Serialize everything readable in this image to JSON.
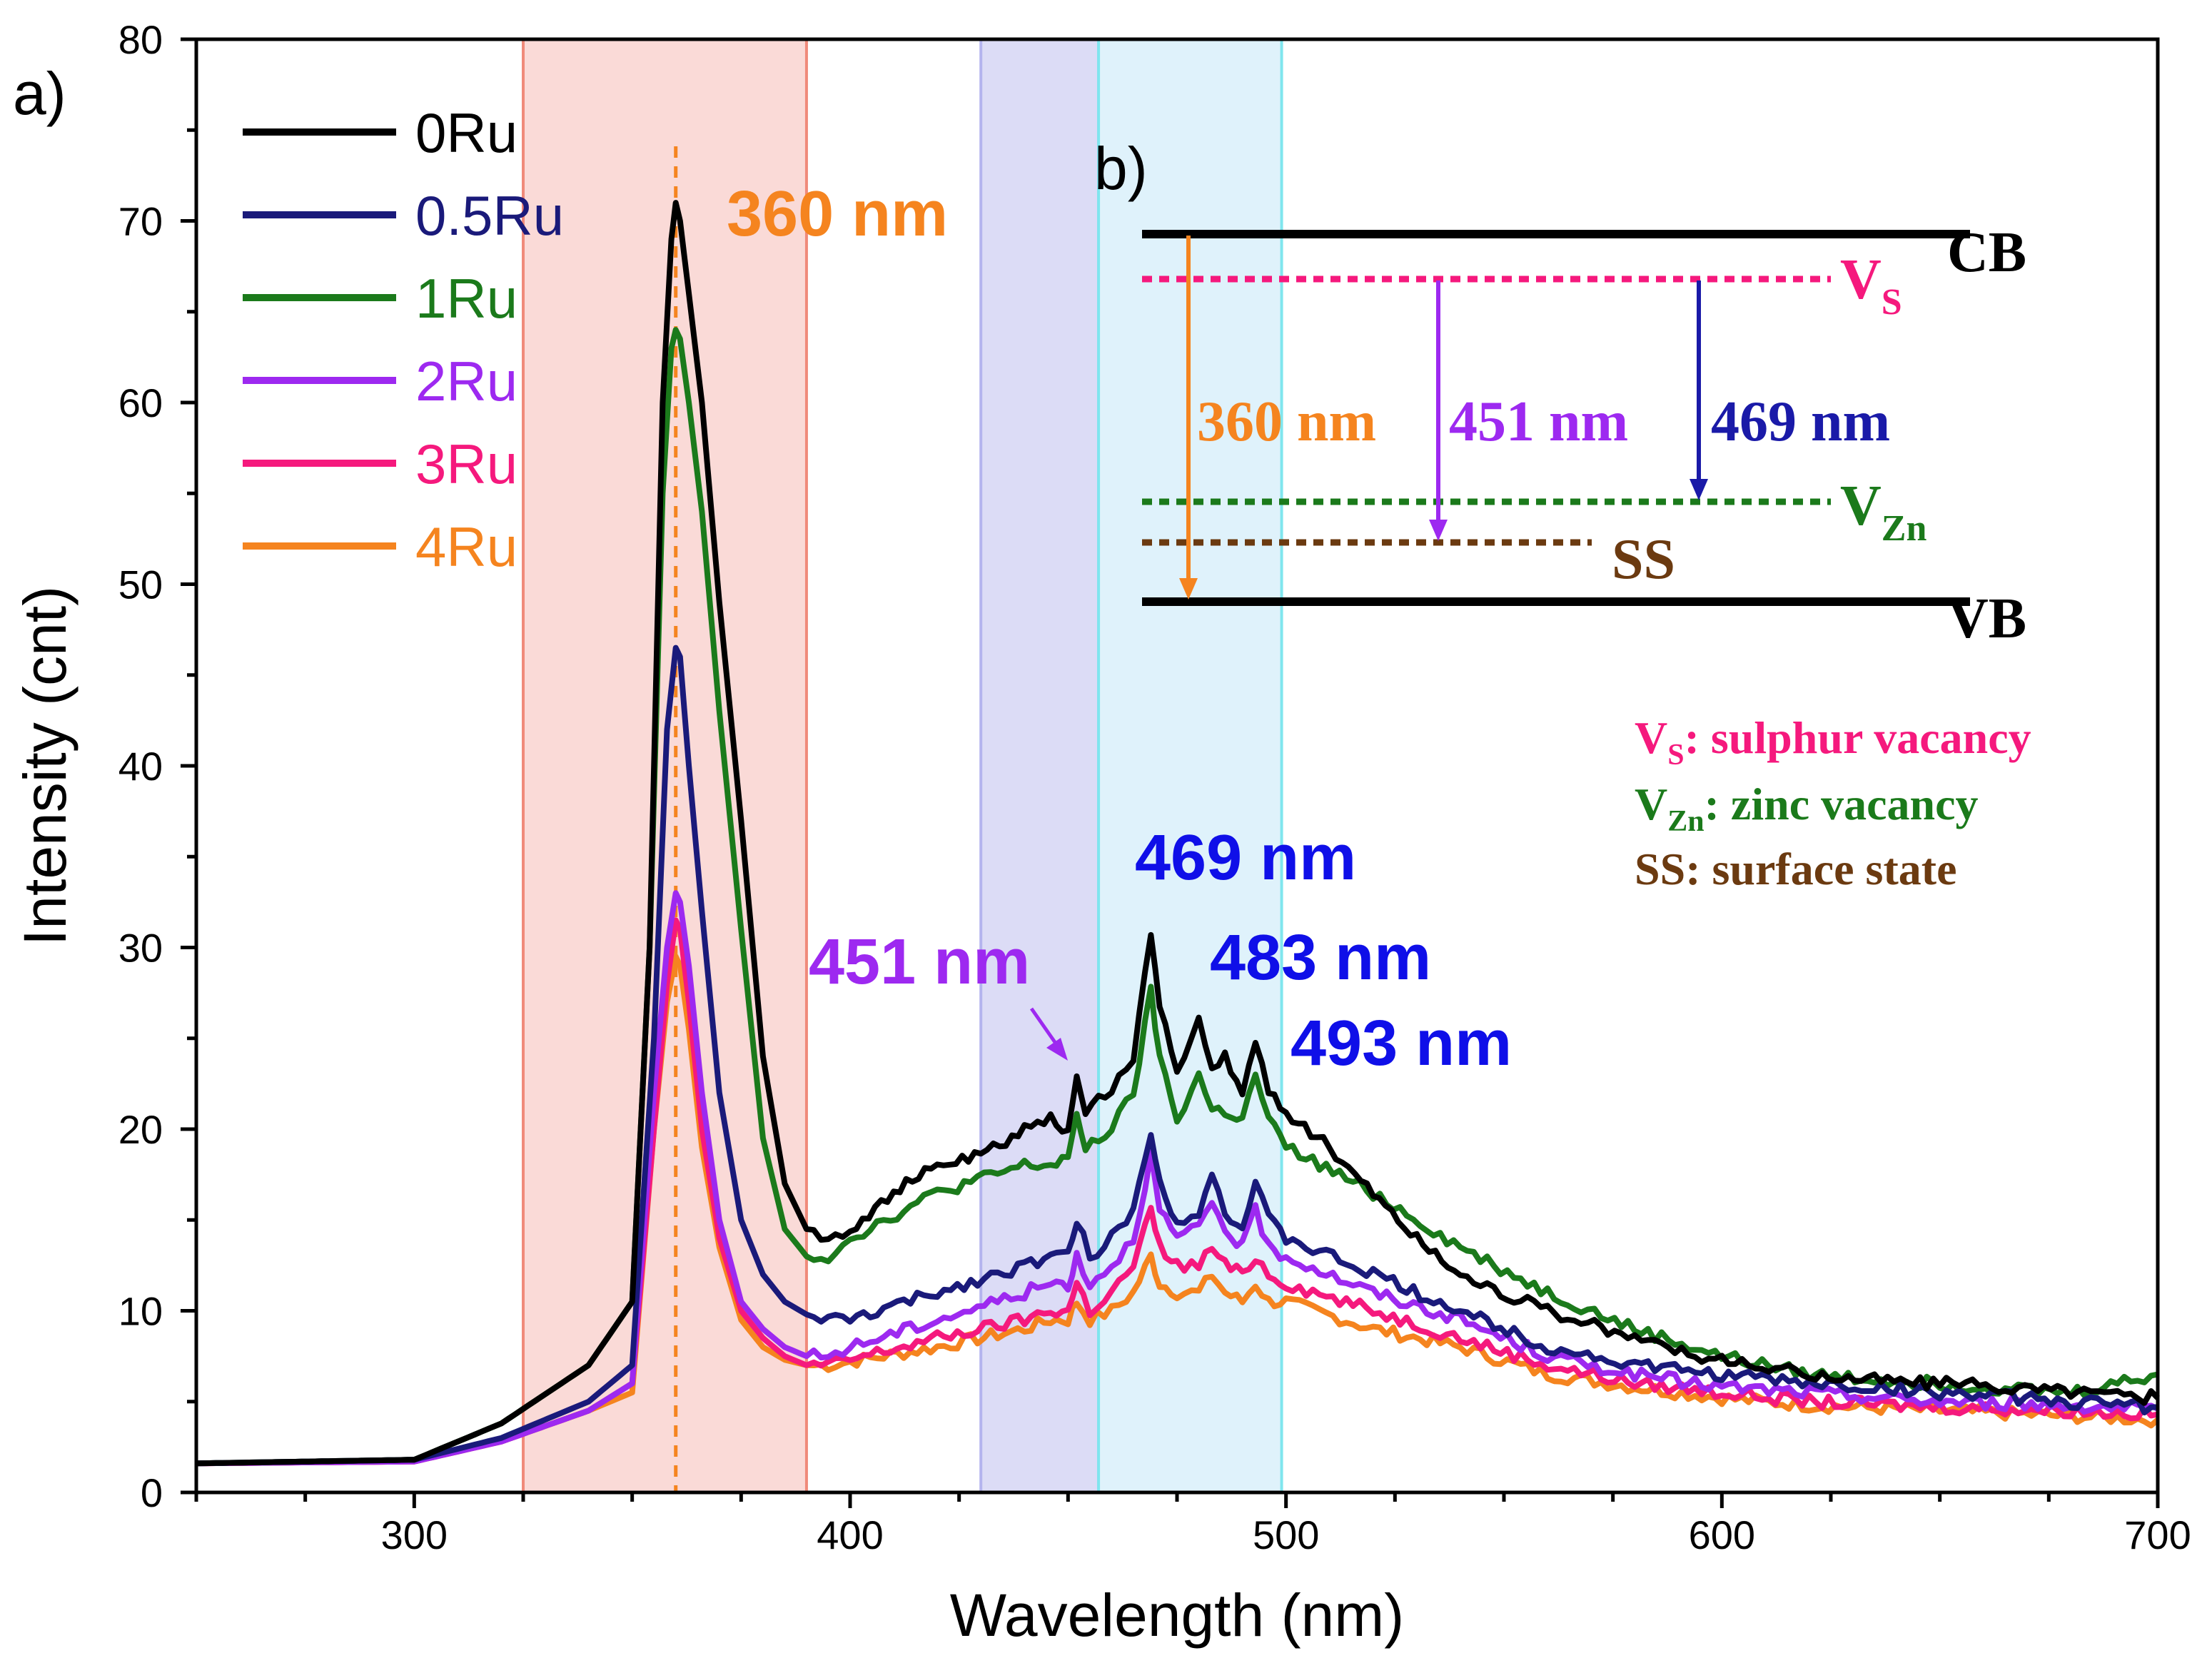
{
  "chart_data": {
    "type": "line",
    "panel_label": "a)",
    "xlabel": "Wavelength (nm)",
    "ylabel": "Intensity (cnt)",
    "xlim": [
      250,
      700
    ],
    "ylim": [
      0,
      80
    ],
    "x_ticks": [
      300,
      400,
      500,
      600,
      700
    ],
    "y_ticks": [
      0,
      10,
      20,
      30,
      40,
      50,
      60,
      70,
      80
    ],
    "grid": false,
    "legend_position": "top-left",
    "shaded_bands": [
      {
        "name": "uv-band",
        "range": [
          325,
          390
        ],
        "fill": "#fadad7",
        "edge": "#f08a7a"
      },
      {
        "name": "violet-band",
        "range": [
          430,
          457
        ],
        "fill": "#dcdcf6",
        "edge": "#b4b4ee"
      },
      {
        "name": "cyan-band",
        "range": [
          457,
          499
        ],
        "fill": "#dff2fb",
        "edge": "#7fe6ee"
      }
    ],
    "reference_line": {
      "x": 360,
      "color": "#f5841f"
    },
    "series": [
      {
        "name": "0Ru",
        "color": "#000000",
        "x": [
          250,
          300,
          320,
          340,
          350,
          354,
          357,
          359,
          360,
          361,
          363,
          366,
          370,
          375,
          380,
          385,
          390,
          395,
          400,
          410,
          420,
          430,
          440,
          446,
          450,
          452,
          454,
          460,
          465,
          469,
          471,
          475,
          480,
          483,
          486,
          490,
          493,
          496,
          500,
          510,
          520,
          530,
          540,
          560,
          580,
          600,
          620,
          650,
          680,
          700
        ],
        "y": [
          1.6,
          1.8,
          3.8,
          7,
          10.5,
          30,
          60,
          69,
          71,
          70,
          66,
          60,
          49,
          37,
          24,
          17,
          14.5,
          14,
          14.5,
          16.5,
          18,
          18.5,
          20,
          20.5,
          20,
          23,
          21,
          22,
          24,
          31,
          27,
          23,
          26,
          23,
          24,
          22,
          25,
          22,
          21,
          19,
          16.5,
          14,
          12,
          10,
          8.5,
          7.2,
          6.5,
          6,
          5.6,
          5.2
        ]
      },
      {
        "name": "0.5Ru",
        "color": "#1a1a7a",
        "x": [
          250,
          300,
          320,
          340,
          350,
          355,
          358,
          360,
          361,
          363,
          366,
          370,
          375,
          380,
          385,
          390,
          395,
          400,
          420,
          440,
          446,
          450,
          452,
          455,
          460,
          465,
          469,
          471,
          475,
          480,
          483,
          486,
          490,
          493,
          496,
          500,
          520,
          540,
          560,
          580,
          600,
          620,
          650,
          680,
          700
        ],
        "y": [
          1.6,
          1.8,
          3,
          5,
          7,
          25,
          42,
          46.5,
          46,
          40,
          32,
          22,
          15,
          12,
          10.5,
          9.8,
          9.5,
          9.5,
          11,
          12.5,
          13,
          13,
          15,
          13,
          14,
          15.5,
          20,
          17,
          15,
          15.5,
          17.5,
          15.5,
          14.5,
          17,
          15,
          14,
          12,
          10,
          8,
          7,
          6.5,
          6,
          5.5,
          5,
          4.7
        ]
      },
      {
        "name": "1Ru",
        "color": "#1b7a1b",
        "x": [
          250,
          300,
          320,
          340,
          350,
          354,
          357,
          359,
          360,
          361,
          363,
          366,
          370,
          375,
          380,
          385,
          390,
          395,
          400,
          420,
          440,
          446,
          450,
          452,
          454,
          460,
          465,
          469,
          471,
          475,
          480,
          483,
          486,
          490,
          493,
          496,
          500,
          520,
          540,
          560,
          580,
          600,
          620,
          650,
          680,
          700
        ],
        "y": [
          1.6,
          1.8,
          3.8,
          7,
          10.5,
          30,
          55,
          63,
          64,
          63.5,
          60,
          54,
          43,
          31,
          19.5,
          14.5,
          13,
          13,
          14,
          16.5,
          18,
          18,
          18.5,
          20.5,
          19,
          20,
          22,
          27.5,
          24,
          20.5,
          23,
          21,
          21,
          20.5,
          23,
          20.5,
          19,
          16.5,
          13.5,
          11,
          9,
          7.5,
          6.5,
          6,
          5.5,
          6.5
        ]
      },
      {
        "name": "2Ru",
        "color": "#9d29f0",
        "x": [
          250,
          300,
          320,
          340,
          350,
          355,
          358,
          360,
          361,
          363,
          366,
          370,
          375,
          380,
          385,
          390,
          395,
          400,
          420,
          440,
          446,
          450,
          452,
          455,
          460,
          465,
          469,
          471,
          475,
          480,
          483,
          486,
          490,
          493,
          496,
          500,
          520,
          540,
          560,
          580,
          600,
          620,
          650,
          680,
          700
        ],
        "y": [
          1.6,
          1.7,
          2.8,
          4.5,
          6,
          22,
          30,
          33,
          32.5,
          29,
          22,
          15,
          10.5,
          9,
          8,
          7.5,
          7.5,
          8,
          9.5,
          11,
          11.5,
          11.5,
          13,
          11.5,
          12.5,
          14,
          18.5,
          15.5,
          14,
          14.5,
          16,
          14.5,
          13.5,
          15.5,
          13.5,
          13,
          11,
          9.5,
          7.5,
          6.5,
          5.8,
          5.5,
          5,
          4.8,
          4.6
        ]
      },
      {
        "name": "3Ru",
        "color": "#f5197d",
        "x": [
          250,
          300,
          320,
          340,
          350,
          355,
          358,
          360,
          361,
          363,
          366,
          370,
          375,
          380,
          385,
          390,
          395,
          400,
          420,
          440,
          446,
          450,
          452,
          455,
          460,
          465,
          469,
          471,
          475,
          480,
          483,
          486,
          490,
          493,
          496,
          500,
          520,
          540,
          560,
          580,
          600,
          620,
          650,
          680,
          700
        ],
        "y": [
          1.6,
          1.7,
          2.8,
          4.5,
          6,
          20,
          28,
          31.5,
          31,
          27,
          20,
          14,
          10,
          8.5,
          7.5,
          7,
          7,
          7.3,
          8.5,
          9.5,
          10,
          10,
          11.5,
          10,
          11,
          12.5,
          15.5,
          13.5,
          12.5,
          12.5,
          13.5,
          12.5,
          12,
          13,
          12,
          11.5,
          10,
          8.5,
          7,
          6,
          5.5,
          5,
          4.7,
          4.5,
          4.3
        ]
      },
      {
        "name": "4Ru",
        "color": "#f5841f",
        "x": [
          250,
          300,
          320,
          340,
          350,
          355,
          358,
          360,
          361,
          363,
          366,
          370,
          375,
          380,
          385,
          390,
          395,
          400,
          420,
          440,
          446,
          450,
          452,
          455,
          460,
          465,
          469,
          471,
          475,
          480,
          483,
          486,
          490,
          493,
          496,
          500,
          520,
          540,
          560,
          580,
          600,
          620,
          650,
          680,
          700
        ],
        "y": [
          1.6,
          1.7,
          2.8,
          4.5,
          5.5,
          20,
          27,
          29.5,
          29,
          25.5,
          19,
          13.5,
          9.5,
          8,
          7.3,
          7,
          7,
          7.2,
          8,
          9,
          9.5,
          9.5,
          10.5,
          9.5,
          10,
          11,
          13,
          11.5,
          11,
          11,
          12,
          11,
          10.5,
          11.5,
          10.5,
          10.5,
          9,
          8,
          6.5,
          5.8,
          5.2,
          4.8,
          4.5,
          4.2,
          4
        ]
      }
    ],
    "peak_annotations": [
      {
        "text": "360 nm",
        "color": "#f5841f"
      },
      {
        "text": "451 nm",
        "color": "#9d29f0"
      },
      {
        "text": "469 nm",
        "color": "#0f0fe8"
      },
      {
        "text": "483 nm",
        "color": "#0f0fe8"
      },
      {
        "text": "493 nm",
        "color": "#0f0fe8"
      }
    ]
  },
  "inset": {
    "panel_label": "b)",
    "levels": {
      "cb": "CB",
      "vb": "VB",
      "vs_main": "V",
      "vs_sub": "S",
      "vzn_main": "V",
      "vzn_sub": "Zn",
      "ss": "SS"
    },
    "transitions": [
      {
        "text": "360 nm",
        "color": "#f5841f"
      },
      {
        "text": "451 nm",
        "color": "#9d29f0"
      },
      {
        "text": "469 nm",
        "color": "#1a1aa8"
      }
    ],
    "defect_legend": [
      {
        "main": "V",
        "sub": "S",
        "text": ": sulphur vacancy",
        "color": "#f5197d"
      },
      {
        "main": "V",
        "sub": "Zn",
        "text": ": zinc vacancy",
        "color": "#1b7a1b"
      },
      {
        "main": "SS",
        "sub": "",
        "text": ": surface state",
        "color": "#6b3a10"
      }
    ],
    "colors": {
      "vs": "#f5197d",
      "vzn": "#1b7a1b",
      "ss": "#6b3a10"
    }
  }
}
